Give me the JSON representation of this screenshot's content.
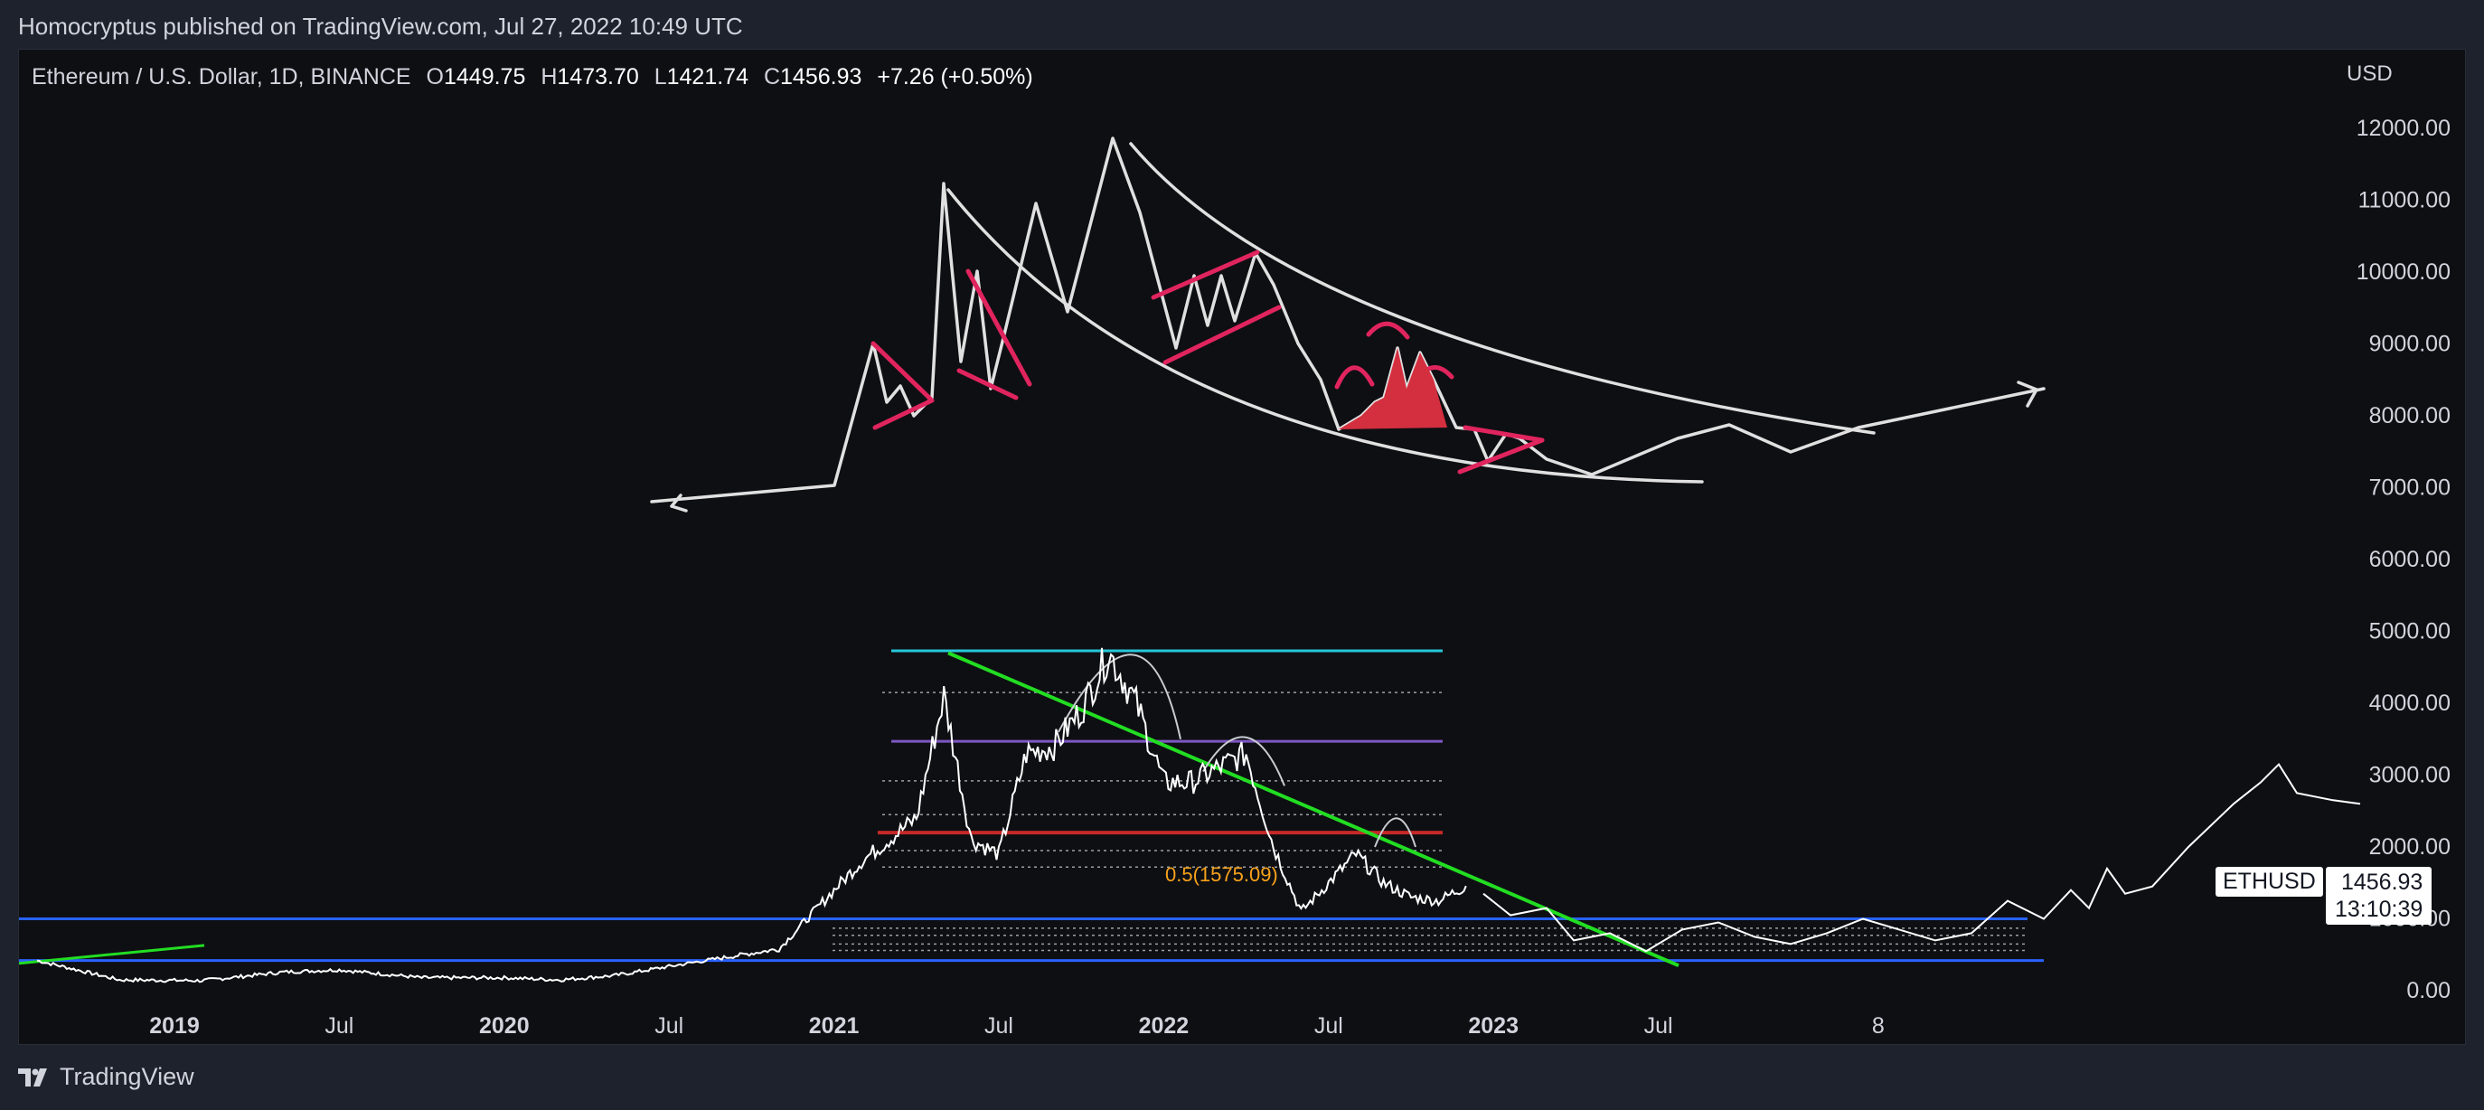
{
  "header": {
    "published_by": "Homocryptus published on TradingView.com, Jul 27, 2022 10:49 UTC"
  },
  "legend": {
    "symbol": "Ethereum / U.S. Dollar, 1D, BINANCE",
    "open_label": "O",
    "open": "1449.75",
    "high_label": "H",
    "high": "1473.70",
    "low_label": "L",
    "low": "1421.74",
    "close_label": "C",
    "close": "1456.93",
    "change": "+7.26 (+0.50%)"
  },
  "price_axis": {
    "currency": "USD",
    "ticks": [
      "12000.00",
      "11000.00",
      "10000.00",
      "9000.00",
      "8000.00",
      "7000.00",
      "6000.00",
      "5000.00",
      "4000.00",
      "3000.00",
      "2000.00",
      "1000.00",
      "0.00"
    ]
  },
  "time_axis": {
    "ticks": [
      {
        "label": "2019",
        "bold": true
      },
      {
        "label": "Jul",
        "bold": false
      },
      {
        "label": "2020",
        "bold": true
      },
      {
        "label": "Jul",
        "bold": false
      },
      {
        "label": "2021",
        "bold": true
      },
      {
        "label": "Jul",
        "bold": false
      },
      {
        "label": "2022",
        "bold": true
      },
      {
        "label": "Jul",
        "bold": false
      },
      {
        "label": "2023",
        "bold": true
      },
      {
        "label": "Jul",
        "bold": false
      },
      {
        "label": "8",
        "bold": false
      }
    ]
  },
  "current_price": {
    "ticker": "ETHUSD",
    "price": "1456.93",
    "countdown": "13:10:39"
  },
  "fib_label": "0.5(1575.09)",
  "footer": {
    "brand": "TradingView"
  },
  "colors": {
    "background": "#0e0f13",
    "price_line": "#ffffff",
    "drawing_white": "#e0e0e0",
    "pattern_pink": "#e0245e",
    "trend_green": "#22dd22",
    "level_cyan": "#26c6da",
    "level_purple": "#7e57c2",
    "level_red": "#c62828",
    "level_blue": "#2962ff",
    "fib_orange": "#f7a21b"
  },
  "chart_data": {
    "type": "line",
    "series": [
      {
        "name": "ETHUSD",
        "x": [
          "2018-08",
          "2018-11",
          "2019-02",
          "2019-05",
          "2019-07",
          "2019-10",
          "2020-01",
          "2020-03",
          "2020-05",
          "2020-08",
          "2020-11",
          "2021-01",
          "2021-02",
          "2021-04",
          "2021-05",
          "2021-06",
          "2021-07",
          "2021-08",
          "2021-09",
          "2021-10",
          "2021-11",
          "2021-12",
          "2022-01",
          "2022-02",
          "2022-04",
          "2022-05",
          "2022-06",
          "2022-08",
          "2022-09",
          "2022-10",
          "2022-11",
          "2022-12"
        ],
        "y": [
          420,
          150,
          140,
          260,
          290,
          180,
          180,
          150,
          210,
          400,
          580,
          1400,
          1800,
          2400,
          4100,
          2100,
          1900,
          3300,
          3400,
          3900,
          4700,
          4000,
          2900,
          2900,
          3300,
          2000,
          1100,
          1900,
          1500,
          1300,
          1250,
          1456.93
        ]
      }
    ],
    "levels": [
      4730,
      3470,
      2200,
      1000,
      420
    ],
    "ylim": [
      0,
      12600
    ]
  }
}
